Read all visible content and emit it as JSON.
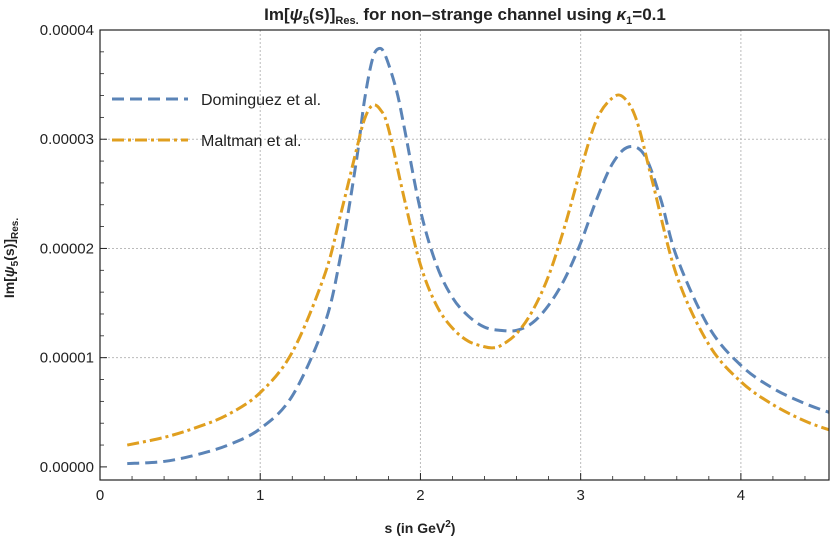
{
  "chart_data": {
    "type": "line",
    "title_main": "Im[",
    "title_psi": "ψ",
    "title_sub5": "5",
    "title_s": "(s)]",
    "title_res": "Res.",
    "title_rest": " for non–strange channel using ",
    "title_kappa": "κ",
    "title_sub1": "1",
    "title_value": "=0.1",
    "xlabel_main": "s (in GeV",
    "xlabel_sup": "2",
    "xlabel_close": ")",
    "ylabel_main": "Im[",
    "ylabel_psi": "ψ",
    "ylabel_sub5": "5",
    "ylabel_s": "(s)]",
    "ylabel_res": "Res.",
    "xlim": [
      0,
      4.55
    ],
    "ylim": [
      -1.2e-06,
      4e-05
    ],
    "xticks": [
      0,
      1,
      2,
      3,
      4
    ],
    "xtick_labels": [
      "0",
      "1",
      "2",
      "3",
      "4"
    ],
    "yticks": [
      0,
      1e-05,
      2e-05,
      3e-05,
      4e-05
    ],
    "ytick_labels": [
      "0.00000",
      "0.00001",
      "0.00002",
      "0.00003",
      "0.00004"
    ],
    "grid": true,
    "legend_position": "top-left",
    "series": [
      {
        "name": "Dominguez et al.",
        "color": "#5b84b7",
        "style": "dashed",
        "x": [
          0.17,
          0.4,
          0.6,
          0.8,
          1.0,
          1.2,
          1.4,
          1.5,
          1.6,
          1.65,
          1.7,
          1.74,
          1.78,
          1.85,
          1.9,
          2.0,
          2.1,
          2.2,
          2.3,
          2.4,
          2.5,
          2.6,
          2.7,
          2.8,
          2.9,
          3.0,
          3.1,
          3.2,
          3.3,
          3.4,
          3.5,
          3.6,
          3.8,
          4.0,
          4.2,
          4.4,
          4.55
        ],
        "y": [
          3e-07,
          5e-07,
          1.1e-06,
          2e-06,
          3.5e-06,
          6.5e-06,
          1.3e-05,
          1.92e-05,
          2.8e-05,
          3.35e-05,
          3.73e-05,
          3.83e-05,
          3.77e-05,
          3.45e-05,
          3.1e-05,
          2.35e-05,
          1.85e-05,
          1.55e-05,
          1.38e-05,
          1.28e-05,
          1.25e-05,
          1.25e-05,
          1.32e-05,
          1.48e-05,
          1.72e-05,
          2.05e-05,
          2.45e-05,
          2.78e-05,
          2.93e-05,
          2.85e-05,
          2.45e-05,
          1.92e-05,
          1.28e-05,
          9.3e-06,
          7.2e-06,
          5.8e-06,
          5e-06
        ]
      },
      {
        "name": "Maltman et al.",
        "color": "#e09f1f",
        "style": "dashdot",
        "x": [
          0.17,
          0.4,
          0.6,
          0.8,
          1.0,
          1.2,
          1.4,
          1.5,
          1.6,
          1.65,
          1.7,
          1.75,
          1.8,
          1.9,
          2.0,
          2.1,
          2.2,
          2.3,
          2.4,
          2.45,
          2.5,
          2.6,
          2.7,
          2.8,
          2.9,
          3.0,
          3.1,
          3.2,
          3.27,
          3.35,
          3.45,
          3.6,
          3.8,
          4.0,
          4.2,
          4.4,
          4.55
        ],
        "y": [
          2e-06,
          2.7e-06,
          3.6e-06,
          4.8e-06,
          6.8e-06,
          1.05e-05,
          1.75e-05,
          2.3e-05,
          2.9e-05,
          3.18e-05,
          3.31e-05,
          3.27e-05,
          3.1e-05,
          2.45e-05,
          1.85e-05,
          1.48e-05,
          1.27e-05,
          1.15e-05,
          1.1e-05,
          1.09e-05,
          1.11e-05,
          1.22e-05,
          1.43e-05,
          1.75e-05,
          2.2e-05,
          2.72e-05,
          3.18e-05,
          3.38e-05,
          3.38e-05,
          3.17e-05,
          2.6e-05,
          1.75e-05,
          1.12e-05,
          7.8e-06,
          5.7e-06,
          4.2e-06,
          3.4e-06
        ]
      }
    ]
  }
}
